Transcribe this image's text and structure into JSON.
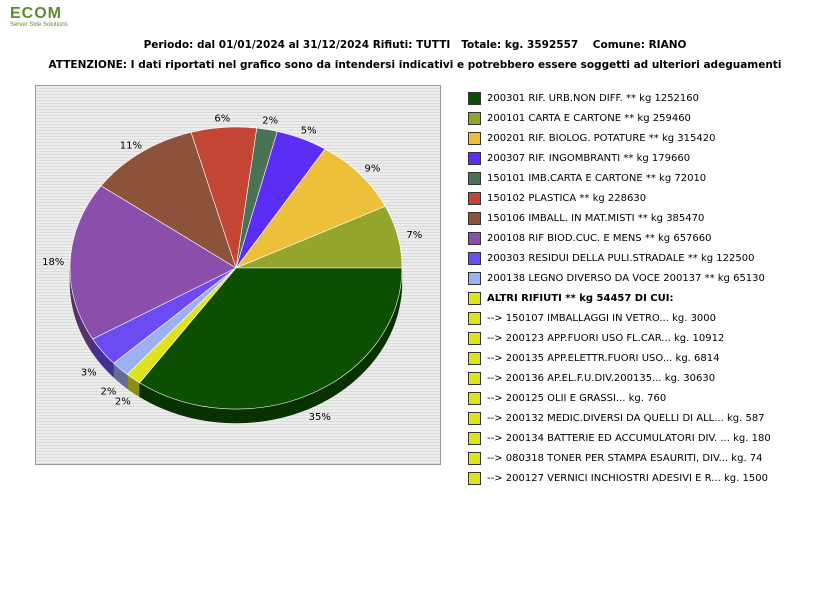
{
  "logo": {
    "mark": "ECOM",
    "tagline": "Server Side Solutions"
  },
  "header": {
    "line1": "Periodo: dal 01/01/2024 al 31/12/2024 Rifiuti: TUTTI   Totale: kg. 3592557    Comune: RIANO",
    "line2": "ATTENZIONE: I dati riportati nel grafico sono da intendersi indicativi e potrebbero essere soggetti ad ulteriori adeguamenti"
  },
  "chart_data": {
    "type": "pie",
    "title": "Periodo: dal 01/01/2024 al 31/12/2024 Rifiuti: TUTTI   Totale: kg. 3592557    Comune: RIANO",
    "total_kg": 3592557,
    "slices": [
      {
        "label": "200101 CARTA E CARTONE ** kg 259460",
        "value": 259460,
        "pct_label": "7%",
        "color": "#95a52b"
      },
      {
        "label": "200201 RIF. BIOLOG. POTATURE ** kg 315420",
        "value": 315420,
        "pct_label": "9%",
        "color": "#ecc038"
      },
      {
        "label": "200307 RIF. INGOMBRANTI ** kg 179660",
        "value": 179660,
        "pct_label": "5%",
        "color": "#5b2ef5"
      },
      {
        "label": "150101 IMB.CARTA E CARTONE ** kg 72010",
        "value": 72010,
        "pct_label": "2%",
        "color": "#4a7356"
      },
      {
        "label": "150102 PLASTICA ** kg 228630",
        "value": 228630,
        "pct_label": "6%",
        "color": "#c44533"
      },
      {
        "label": "150106 IMBALL. IN MAT.MISTI ** kg 385470",
        "value": 385470,
        "pct_label": "11%",
        "color": "#8c523a"
      },
      {
        "label": "200108 RIF BIOD.CUC. E MENS ** kg 657660",
        "value": 657660,
        "pct_label": "18%",
        "color": "#8a4fac"
      },
      {
        "label": "200303 RESIDUI DELLA PULI.STRADALE ** kg 122500",
        "value": 122500,
        "pct_label": "3%",
        "color": "#6c4bf2"
      },
      {
        "label": "200138 LEGNO DIVERSO DA VOCE 200137 ** kg 65130",
        "value": 65130,
        "pct_label": "2%",
        "color": "#9cb0f3"
      },
      {
        "label": "ALTRI RIFIUTI ** kg 54457 DI CUI:",
        "value": 54457,
        "pct_label": "2%",
        "color": "#dde31f"
      },
      {
        "label": "200301 RIF. URB.NON DIFF. ** kg 1252160",
        "value": 1252160,
        "pct_label": "35%",
        "color": "#0d4f00"
      }
    ]
  },
  "legend": [
    {
      "text": "200301 RIF. URB.NON DIFF. ** kg 1252160",
      "color": "#0d4f00",
      "bold": false
    },
    {
      "text": "200101 CARTA E CARTONE ** kg 259460",
      "color": "#95a52b",
      "bold": false
    },
    {
      "text": "200201 RIF. BIOLOG. POTATURE ** kg 315420",
      "color": "#ecc038",
      "bold": false
    },
    {
      "text": "200307 RIF. INGOMBRANTI ** kg 179660",
      "color": "#5b2ef5",
      "bold": false
    },
    {
      "text": "150101 IMB.CARTA E CARTONE ** kg 72010",
      "color": "#4a7356",
      "bold": false
    },
    {
      "text": "150102 PLASTICA ** kg 228630",
      "color": "#c44533",
      "bold": false
    },
    {
      "text": "150106 IMBALL. IN MAT.MISTI ** kg 385470",
      "color": "#8c523a",
      "bold": false
    },
    {
      "text": "200108 RIF BIOD.CUC. E MENS ** kg 657660",
      "color": "#8a4fac",
      "bold": false
    },
    {
      "text": "200303 RESIDUI DELLA PULI.STRADALE ** kg 122500",
      "color": "#6c4bf2",
      "bold": false
    },
    {
      "text": "200138 LEGNO DIVERSO DA VOCE 200137 ** kg 65130",
      "color": "#9cb0f3",
      "bold": false
    },
    {
      "text": "ALTRI RIFIUTI ** kg 54457 DI CUI:",
      "color": "#dde31f",
      "bold": true
    },
    {
      "text": "  -->  150107 IMBALLAGGI IN VETRO... kg. 3000",
      "color": "#dde31f",
      "bold": false
    },
    {
      "text": "  -->  200123 APP.FUORI USO FL.CAR... kg. 10912",
      "color": "#dde31f",
      "bold": false
    },
    {
      "text": "  -->  200135 APP.ELETTR.FUORI USO... kg. 6814",
      "color": "#dde31f",
      "bold": false
    },
    {
      "text": "  -->  200136 AP.EL.F.U.DIV.200135... kg. 30630",
      "color": "#dde31f",
      "bold": false
    },
    {
      "text": "  -->  200125 OLII E GRASSI... kg. 760",
      "color": "#dde31f",
      "bold": false
    },
    {
      "text": "  -->  200132 MEDIC.DIVERSI DA QUELLI DI ALL... kg. 587",
      "color": "#dde31f",
      "bold": false
    },
    {
      "text": "  -->  200134 BATTERIE ED ACCUMULATORI DIV. ... kg. 180",
      "color": "#dde31f",
      "bold": false
    },
    {
      "text": "  -->  080318 TONER PER STAMPA ESAURITI, DIV... kg. 74",
      "color": "#dde31f",
      "bold": false
    },
    {
      "text": "  -->  200127 VERNICI INCHIOSTRI ADESIVI E R... kg. 1500",
      "color": "#dde31f",
      "bold": false
    }
  ]
}
